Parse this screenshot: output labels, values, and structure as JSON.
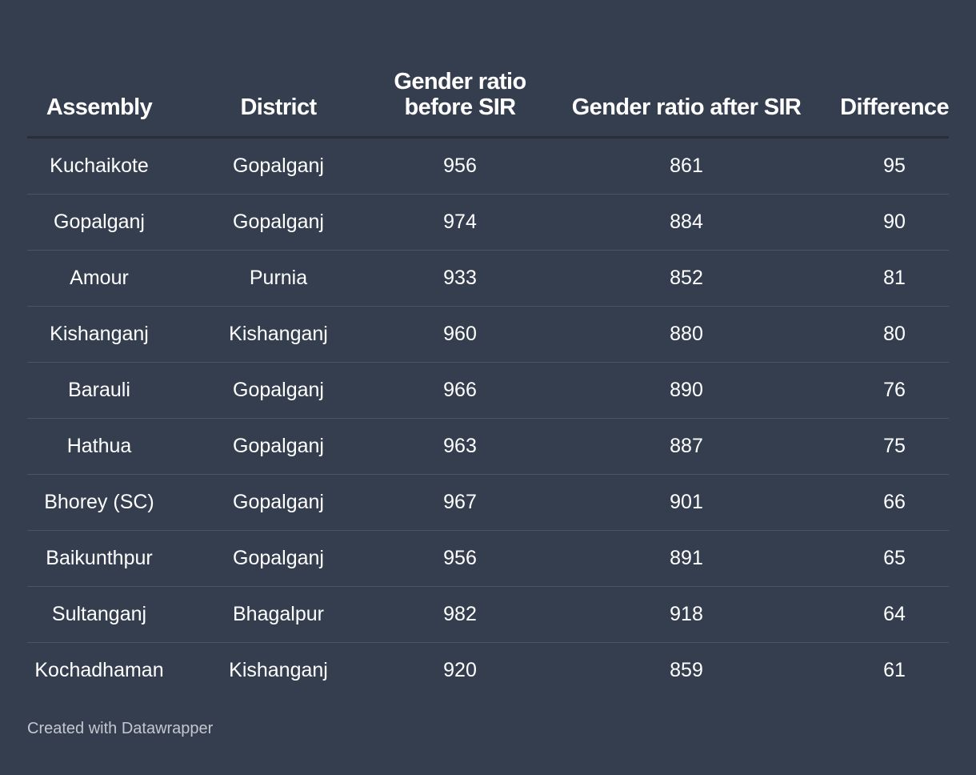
{
  "chart_data": {
    "type": "table",
    "columns": [
      "Assembly",
      "District",
      "Gender ratio before SIR",
      "Gender ratio after SIR",
      "Difference"
    ],
    "rows": [
      [
        "Kuchaikote",
        "Gopalganj",
        "956",
        "861",
        "95"
      ],
      [
        "Gopalganj",
        "Gopalganj",
        "974",
        "884",
        "90"
      ],
      [
        "Amour",
        "Purnia",
        "933",
        "852",
        "81"
      ],
      [
        "Kishanganj",
        "Kishanganj",
        "960",
        "880",
        "80"
      ],
      [
        "Barauli",
        "Gopalganj",
        "966",
        "890",
        "76"
      ],
      [
        "Hathua",
        "Gopalganj",
        "963",
        "887",
        "75"
      ],
      [
        "Bhorey (SC)",
        "Gopalganj",
        "967",
        "901",
        "66"
      ],
      [
        "Baikunthpur",
        "Gopalganj",
        "956",
        "891",
        "65"
      ],
      [
        "Sultanganj",
        "Bhagalpur",
        "982",
        "918",
        "64"
      ],
      [
        "Kochadhaman",
        "Kishanganj",
        "920",
        "859",
        "61"
      ]
    ]
  },
  "footer": {
    "credit": "Created with Datawrapper"
  },
  "colors": {
    "background": "#343e4f",
    "text": "#ffffff",
    "header_rule": "#2a2f36",
    "row_rule": "#4b5565",
    "credit": "#c4c8ce"
  }
}
